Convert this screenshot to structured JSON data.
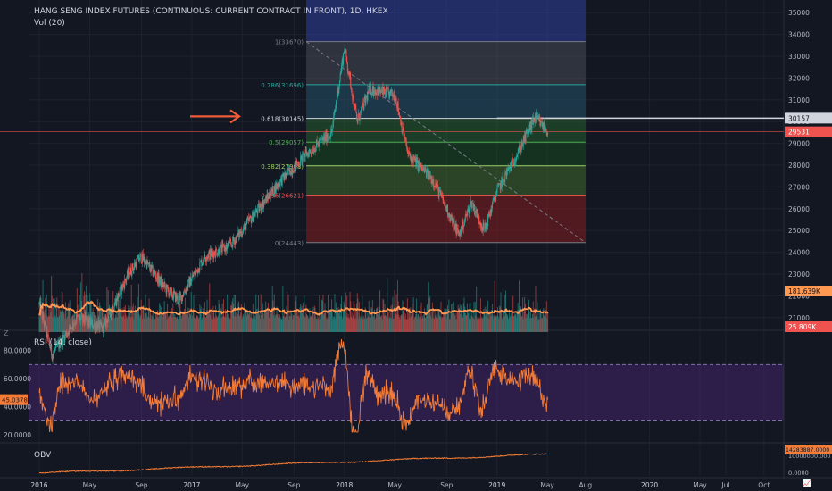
{
  "chart_data": {
    "type": "candlestick",
    "title": "HANG SENG INDEX FUTURES (CONTINUOUS: CURRENT CONTRACT IN FRONT), 1D, HKEX",
    "price_axis": {
      "ticks": [
        "35000",
        "34000",
        "33000",
        "32000",
        "31000",
        "30000",
        "29000",
        "28000",
        "27000",
        "26000",
        "25000",
        "24000",
        "23000",
        "22000",
        "21000"
      ],
      "range": [
        20500,
        35500
      ]
    },
    "time_axis": {
      "ticks": [
        "2016",
        "May",
        "Sep",
        "2017",
        "May",
        "Sep",
        "2018",
        "May",
        "Sep",
        "2019",
        "May",
        "Aug",
        "2020",
        "May",
        "Jul",
        "Oct"
      ]
    },
    "price_path": [
      [
        "2016-01",
        21600
      ],
      [
        "2016-02",
        19300
      ],
      [
        "2016-04",
        21000
      ],
      [
        "2016-06",
        20500
      ],
      [
        "2016-08",
        23000
      ],
      [
        "2016-09",
        23800
      ],
      [
        "2016-11",
        22300
      ],
      [
        "2016-12",
        21800
      ],
      [
        "2017-02",
        23800
      ],
      [
        "2017-04",
        24300
      ],
      [
        "2017-06",
        25800
      ],
      [
        "2017-08",
        27300
      ],
      [
        "2017-10",
        28500
      ],
      [
        "2017-12",
        29500
      ],
      [
        "2018-01",
        33400
      ],
      [
        "2018-02",
        30000
      ],
      [
        "2018-03",
        31500
      ],
      [
        "2018-05",
        31200
      ],
      [
        "2018-06",
        28500
      ],
      [
        "2018-08",
        27300
      ],
      [
        "2018-10",
        24800
      ],
      [
        "2018-11",
        26300
      ],
      [
        "2018-12",
        25000
      ],
      [
        "2019-01",
        26800
      ],
      [
        "2019-03",
        29000
      ],
      [
        "2019-04",
        30200
      ],
      [
        "2019-05",
        29531
      ]
    ],
    "fibonacci": {
      "levels": [
        {
          "label": "1(33670)",
          "value": 33670,
          "color": "#787b86"
        },
        {
          "label": "0.786(31696)",
          "value": 31696,
          "color": "#26a69a"
        },
        {
          "label": "0.618(30145)",
          "value": 30145,
          "color": "#d1d4dc"
        },
        {
          "label": "0.5(29057)",
          "value": 29057,
          "color": "#4caf50"
        },
        {
          "label": "0.382(27968)",
          "value": 27968,
          "color": "#9ccc65"
        },
        {
          "label": "0.236(26621)",
          "value": 26621,
          "color": "#ef5350"
        },
        {
          "label": "0(24443)",
          "value": 24443,
          "color": "#787b86"
        }
      ]
    },
    "price_labels": {
      "hline": "30157",
      "last": "29531"
    },
    "volume": {
      "legend": "Vol (20)",
      "ma_label": "181.639K",
      "last_label": "25.809K"
    },
    "rsi": {
      "legend": "RSI (14, close)",
      "ticks": [
        "80.0000",
        "60.0000",
        "40.0000",
        "20.0000"
      ],
      "upper": 70,
      "lower": 30,
      "range": [
        15,
        93
      ],
      "last": 45.0378,
      "last_label": "45.0378"
    },
    "obv": {
      "legend": "OBV",
      "ticks": [
        "10000000.000",
        "0.0000"
      ],
      "last_label": "14283887.0000"
    },
    "colors": {
      "background": "#131722",
      "up": "#26a69a",
      "down": "#ef5350",
      "ma": "#ff9850",
      "rsi": "#f57c36",
      "obv": "#f57c36",
      "arrow": "#f05b3a",
      "band": "#5b2c8e",
      "highlight_blue": "#303f9f"
    }
  },
  "ui": {
    "z_button": "Z",
    "logo": "📈"
  }
}
